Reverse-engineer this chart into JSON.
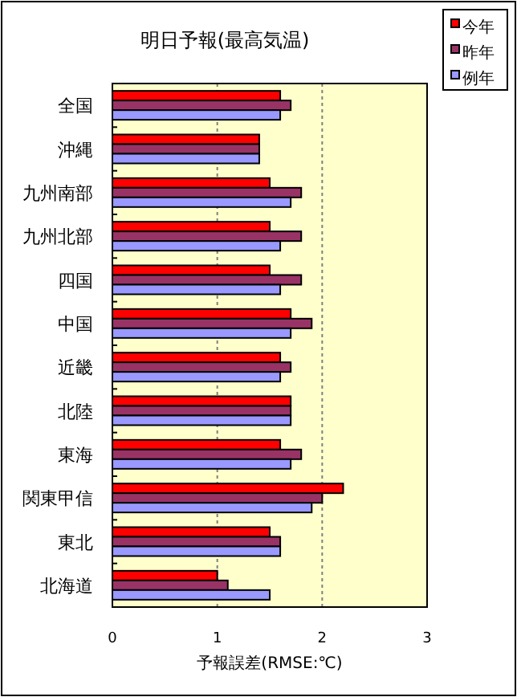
{
  "chart_data": {
    "type": "bar",
    "orientation": "horizontal",
    "title": "明日予報(最高気温)",
    "xlabel": "予報誤差(RMSE:℃)",
    "categories": [
      "全国",
      "沖縄",
      "九州南部",
      "九州北部",
      "四国",
      "中国",
      "近畿",
      "北陸",
      "東海",
      "関東甲信",
      "東北",
      "北海道"
    ],
    "series": [
      {
        "name": "今年",
        "color": "#ff0000",
        "values": [
          1.6,
          1.4,
          1.5,
          1.5,
          1.5,
          1.7,
          1.6,
          1.7,
          1.6,
          2.2,
          1.5,
          1.0
        ]
      },
      {
        "name": "昨年",
        "color": "#993366",
        "values": [
          1.7,
          1.4,
          1.8,
          1.8,
          1.8,
          1.9,
          1.7,
          1.7,
          1.8,
          2.0,
          1.6,
          1.1
        ]
      },
      {
        "name": "例年",
        "color": "#9999ff",
        "values": [
          1.6,
          1.4,
          1.7,
          1.6,
          1.6,
          1.7,
          1.6,
          1.7,
          1.7,
          1.9,
          1.6,
          1.5
        ]
      }
    ],
    "xlim": [
      0,
      3
    ],
    "xticks": [
      0,
      1,
      2,
      3
    ],
    "grid": "x",
    "legend": "top right"
  }
}
